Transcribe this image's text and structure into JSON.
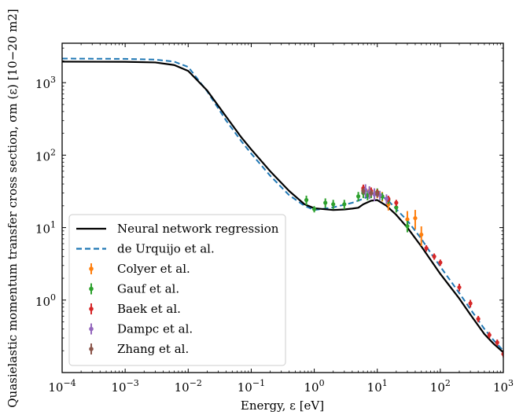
{
  "chart_data": {
    "type": "line",
    "xlabel": "Energy, ε [eV]",
    "ylabel": "Quasielastic momentum transfer cross section, σm (ε) [10−20 m2]",
    "x_scale": "log",
    "y_scale": "log",
    "xlim": [
      0.0001,
      1000
    ],
    "ylim": [
      0.1,
      3500
    ],
    "x_ticks": [
      {
        "value": 0.0001,
        "base": "10",
        "exp": "−4"
      },
      {
        "value": 0.001,
        "base": "10",
        "exp": "−3"
      },
      {
        "value": 0.01,
        "base": "10",
        "exp": "−2"
      },
      {
        "value": 0.1,
        "base": "10",
        "exp": "−1"
      },
      {
        "value": 1,
        "base": "10",
        "exp": "0"
      },
      {
        "value": 10,
        "base": "10",
        "exp": "1"
      },
      {
        "value": 100,
        "base": "10",
        "exp": "2"
      },
      {
        "value": 1000,
        "base": "10",
        "exp": "3"
      }
    ],
    "y_ticks": [
      {
        "value": 1,
        "base": "10",
        "exp": "0"
      },
      {
        "value": 10,
        "base": "10",
        "exp": "1"
      },
      {
        "value": 100,
        "base": "10",
        "exp": "2"
      },
      {
        "value": 1000,
        "base": "10",
        "exp": "3"
      }
    ],
    "legend_placement": "lower-left",
    "series": [
      {
        "name": "Neural network regression",
        "style": "solid",
        "color": "#000000",
        "points": [
          [
            0.0001,
            1950
          ],
          [
            0.001,
            1940
          ],
          [
            0.003,
            1900
          ],
          [
            0.006,
            1750
          ],
          [
            0.01,
            1450
          ],
          [
            0.02,
            780
          ],
          [
            0.04,
            340
          ],
          [
            0.07,
            175
          ],
          [
            0.1,
            120
          ],
          [
            0.2,
            60
          ],
          [
            0.4,
            32
          ],
          [
            0.7,
            21
          ],
          [
            1.0,
            18.5
          ],
          [
            2.0,
            17.5
          ],
          [
            3.0,
            17.8
          ],
          [
            4.0,
            18.3
          ],
          [
            5.0,
            18.8
          ],
          [
            6.0,
            21
          ],
          [
            8.0,
            23.5
          ],
          [
            10,
            24
          ],
          [
            14,
            20
          ],
          [
            20,
            15
          ],
          [
            30,
            10
          ],
          [
            50,
            5.5
          ],
          [
            70,
            3.6
          ],
          [
            100,
            2.3
          ],
          [
            200,
            1.05
          ],
          [
            300,
            0.63
          ],
          [
            500,
            0.34
          ],
          [
            700,
            0.25
          ],
          [
            1000,
            0.19
          ]
        ]
      },
      {
        "name": "de Urquijo et al.",
        "style": "dashed",
        "color": "#1f77b4",
        "points": [
          [
            0.0001,
            2150
          ],
          [
            0.001,
            2130
          ],
          [
            0.003,
            2080
          ],
          [
            0.006,
            1950
          ],
          [
            0.01,
            1650
          ],
          [
            0.02,
            760
          ],
          [
            0.04,
            300
          ],
          [
            0.07,
            155
          ],
          [
            0.1,
            105
          ],
          [
            0.2,
            52
          ],
          [
            0.4,
            28
          ],
          [
            0.7,
            20
          ],
          [
            1.0,
            17.5
          ],
          [
            2.0,
            19
          ],
          [
            4.0,
            22
          ],
          [
            6.0,
            25
          ],
          [
            8.0,
            28
          ],
          [
            10,
            28
          ],
          [
            14,
            25
          ],
          [
            20,
            18
          ],
          [
            30,
            12.5
          ],
          [
            50,
            7
          ],
          [
            70,
            4.5
          ],
          [
            100,
            2.9
          ],
          [
            200,
            1.25
          ],
          [
            300,
            0.75
          ],
          [
            500,
            0.4
          ],
          [
            700,
            0.28
          ],
          [
            1000,
            0.2
          ]
        ]
      },
      {
        "name": "Colyer et al.",
        "color": "#ff7f0e",
        "points": [
          [
            6,
            33,
            0.15
          ],
          [
            7.5,
            32,
            0.15
          ],
          [
            10,
            30,
            0.15
          ],
          [
            12,
            27,
            0.15
          ],
          [
            15,
            21,
            0.18
          ],
          [
            30,
            13,
            0.3
          ],
          [
            40,
            13.5,
            0.3
          ],
          [
            50,
            8,
            0.3
          ]
        ]
      },
      {
        "name": "Gauf et al.",
        "color": "#2ca02c",
        "points": [
          [
            0.75,
            24,
            0.15
          ],
          [
            1.0,
            18,
            0.1
          ],
          [
            1.5,
            22,
            0.15
          ],
          [
            2.0,
            21,
            0.15
          ],
          [
            3.0,
            21,
            0.15
          ],
          [
            5.0,
            27,
            0.15
          ],
          [
            6.0,
            30,
            0.15
          ],
          [
            7.0,
            28,
            0.15
          ],
          [
            8.0,
            30,
            0.15
          ],
          [
            10,
            31,
            0.12
          ],
          [
            12,
            27,
            0.12
          ],
          [
            15,
            24,
            0.12
          ],
          [
            20,
            19,
            0.15
          ],
          [
            30,
            10.5,
            0.18
          ]
        ]
      },
      {
        "name": "Baek et al.",
        "color": "#d62728",
        "points": [
          [
            6,
            35,
            0.12
          ],
          [
            8,
            32,
            0.12
          ],
          [
            10,
            30,
            0.12
          ],
          [
            15,
            25,
            0.1
          ],
          [
            20,
            22,
            0.1
          ],
          [
            60,
            5.2,
            0.1
          ],
          [
            80,
            4.0,
            0.1
          ],
          [
            100,
            3.3,
            0.1
          ],
          [
            200,
            1.5,
            0.12
          ],
          [
            300,
            0.9,
            0.12
          ],
          [
            400,
            0.55,
            0.1
          ],
          [
            600,
            0.33,
            0.1
          ],
          [
            800,
            0.26,
            0.1
          ],
          [
            1000,
            0.18,
            0.1
          ]
        ]
      },
      {
        "name": "Dampc et al.",
        "color": "#9467bd",
        "points": [
          [
            6.5,
            33,
            0.2
          ],
          [
            7.5,
            31,
            0.2
          ],
          [
            9,
            29,
            0.2
          ],
          [
            11,
            28,
            0.15
          ],
          [
            14,
            25,
            0.15
          ]
        ]
      },
      {
        "name": "Zhang et al.",
        "color": "#8c564b",
        "points": [
          [
            6,
            32,
            0.1
          ],
          [
            8,
            30,
            0.1
          ],
          [
            10,
            29,
            0.1
          ]
        ]
      }
    ]
  }
}
